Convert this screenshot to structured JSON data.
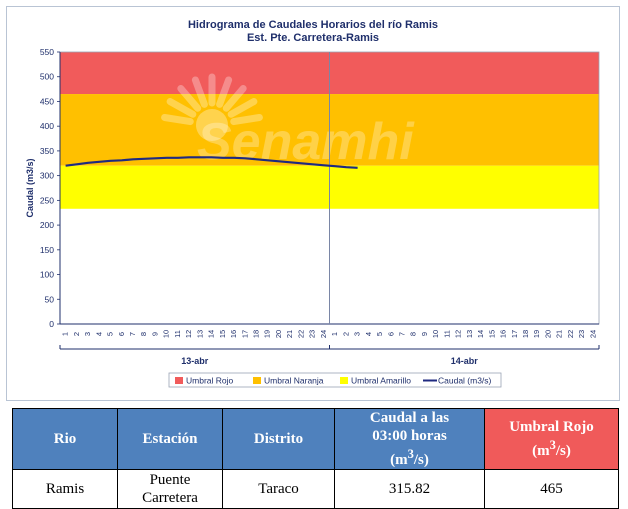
{
  "chart_data": {
    "type": "line",
    "title": "Hidrograma de Caudales Horarios del río Ramis",
    "subtitle": "Est. Pte. Carretera-Ramis",
    "ylabel": "Caudal  (m3/s)",
    "ylim": [
      0,
      550
    ],
    "yticks": [
      "0",
      "50",
      "100",
      "150",
      "200",
      "250",
      "300",
      "350",
      "400",
      "450",
      "500",
      "550"
    ],
    "xticks": [
      "1",
      "2",
      "3",
      "4",
      "5",
      "6",
      "7",
      "8",
      "9",
      "10",
      "11",
      "12",
      "13",
      "14",
      "15",
      "16",
      "17",
      "18",
      "19",
      "20",
      "21",
      "22",
      "23",
      "24",
      "1",
      "2",
      "3",
      "4",
      "5",
      "6",
      "7",
      "8",
      "9",
      "10",
      "11",
      "12",
      "13",
      "14",
      "15",
      "16",
      "17",
      "18",
      "19",
      "20",
      "21",
      "22",
      "23",
      "24"
    ],
    "days": [
      "13-abr",
      "14-abr"
    ],
    "thresholds": [
      {
        "name": "Umbral Rojo",
        "from": 465,
        "to": 550,
        "color": "#f15b5b"
      },
      {
        "name": "Umbral Naranja",
        "from": 320,
        "to": 465,
        "color": "#ffc000"
      },
      {
        "name": "Umbral Amarillo",
        "from": 233,
        "to": 320,
        "color": "#ffff00"
      }
    ],
    "series": [
      {
        "name": "Caudal (m3/s)",
        "color": "#1f2a80",
        "values": [
          320,
          323,
          326,
          328,
          330,
          331,
          333,
          334,
          335,
          336,
          336,
          337,
          337,
          337,
          336,
          336,
          335,
          333,
          331,
          329,
          327,
          325,
          323,
          321,
          319,
          317,
          315.82
        ]
      }
    ],
    "legend": [
      "Umbral Rojo",
      "Umbral Naranja",
      "Umbral Amarillo",
      "Caudal (m3/s)"
    ],
    "watermark": "Senamhi"
  },
  "table": {
    "headers": [
      "Rio",
      "Estación",
      "Distrito",
      "Caudal a las 03:00 horas (m³/s)",
      "Umbral Rojo (m³/s)"
    ],
    "header_caudal_line1": "Caudal a las",
    "header_caudal_line2": "03:00 horas",
    "header_caudal_unit": "(m",
    "header_caudal_sup": "3",
    "header_caudal_unit_end": "/s)",
    "header_umbral_line1": "Umbral Rojo",
    "header_umbral_unit": "(m",
    "header_umbral_sup": "3",
    "header_umbral_unit_end": "/s)",
    "row": {
      "rio": "Ramis",
      "estacion_line1": "Puente",
      "estacion_line2": "Carretera",
      "distrito": "Taraco",
      "caudal": "315.82",
      "umbral_rojo": "465"
    }
  }
}
